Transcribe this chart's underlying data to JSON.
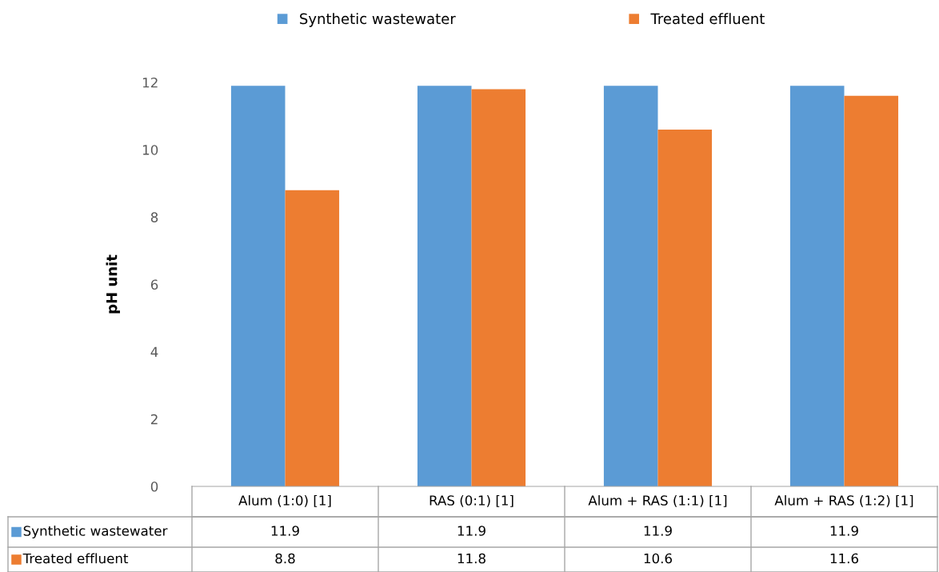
{
  "chart_data": {
    "type": "bar",
    "ylabel": "pH unit",
    "categories": [
      "Alum (1:0) [1]",
      "RAS (0:1) [1]",
      "Alum + RAS (1:1) [1]",
      "Alum + RAS (1:2) [1]"
    ],
    "series": [
      {
        "name": "Synthetic wastewater",
        "color": "#5b9bd5",
        "values": [
          11.9,
          11.9,
          11.9,
          11.9
        ]
      },
      {
        "name": "Treated effluent",
        "color": "#ed7d31",
        "values": [
          8.8,
          11.8,
          10.6,
          11.6
        ]
      }
    ],
    "ylim": [
      0,
      12
    ],
    "yticks": [
      0,
      2,
      4,
      6,
      8,
      10,
      12
    ],
    "grid": false,
    "legend": "top",
    "data_labels": true
  }
}
